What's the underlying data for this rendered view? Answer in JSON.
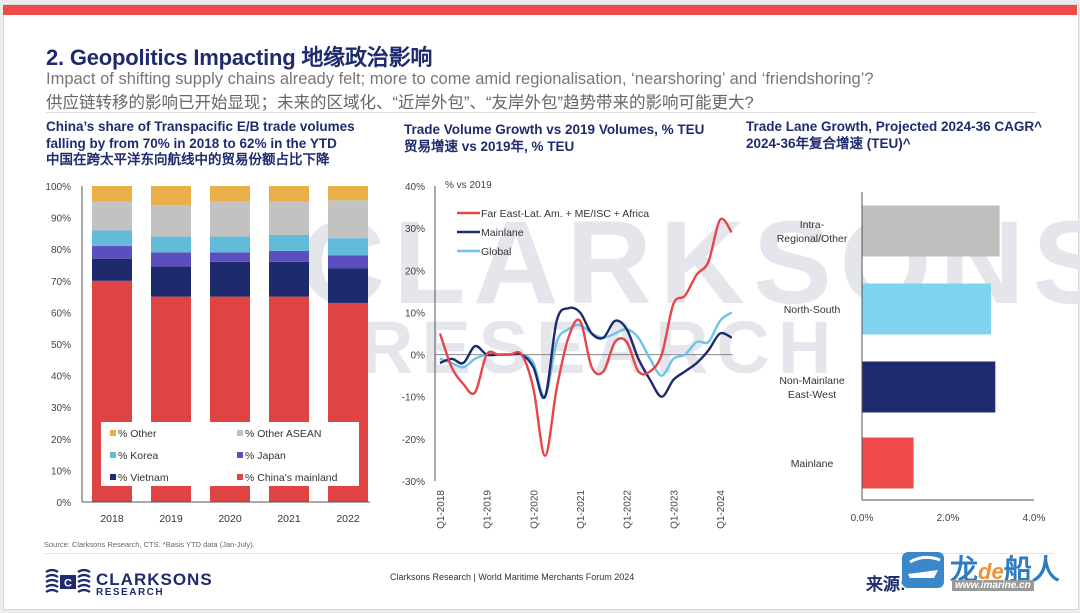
{
  "slide": {
    "title": "2. Geopolitics Impacting 地缘政治影响",
    "subtitle_en": "Impact of shifting supply chains already felt; more to come amid regionalisation, ‘nearshoring’ and ‘friendshoring’?",
    "subtitle_zh": "供应链转移的影响已开始显现；未来的区域化、“近岸外包”、“友岸外包”趋势带来的影响可能更大?",
    "accent_color": "#ef4b4b",
    "watermark_line1": "CLARKSONS",
    "watermark_line2": "RESEARCH"
  },
  "footer": {
    "source": "Source: Clarksons Research, CTS. *Basis YTD data (Jan-July).",
    "center": "Clarksons Research | World Maritime Merchants Forum 2024",
    "logo_name": "CLARKSONS",
    "logo_sub": "RESEARCH",
    "logo_icon_letter": "C",
    "watermark_prefix": "来源:",
    "watermark_brand_a": "龙",
    "watermark_brand_b": "de",
    "watermark_brand_c": "船人",
    "watermark_url": "www.imarine.cn"
  },
  "chart_data": [
    {
      "type": "bar",
      "stacked": true,
      "title_lines": [
        "China’s share of Transpacific E/B trade volumes",
        "falling by from 70% in 2018 to 62% in the YTD",
        "中国在跨太平洋东向航线中的贸易份额占比下降"
      ],
      "categories": [
        "2018",
        "2019",
        "2020",
        "2021",
        "2022"
      ],
      "ylim": [
        0,
        100
      ],
      "yticks": [
        "0%",
        "10%",
        "20%",
        "30%",
        "40%",
        "50%",
        "60%",
        "70%",
        "80%",
        "90%",
        "100%"
      ],
      "series": [
        {
          "name": "% China's mainland",
          "color": "#e04343",
          "values": [
            70,
            65,
            65,
            65,
            63
          ]
        },
        {
          "name": "% Vietnam",
          "color": "#1d2a6b",
          "values": [
            7,
            9.5,
            11,
            11,
            11
          ]
        },
        {
          "name": "% Japan",
          "color": "#5b4fc0",
          "values": [
            4,
            4.5,
            3,
            3.5,
            4
          ]
        },
        {
          "name": "% Korea",
          "color": "#62bcd9",
          "values": [
            5,
            5,
            5,
            5,
            5.5
          ]
        },
        {
          "name": "% Other ASEAN",
          "color": "#c2c2c2",
          "values": [
            9,
            10,
            11,
            10.5,
            12
          ]
        },
        {
          "name": "% Other",
          "color": "#e9b04a",
          "values": [
            5,
            6,
            5,
            5,
            4.5
          ]
        }
      ],
      "legend_order": [
        "% Other",
        "% Other ASEAN",
        "% Korea",
        "% Japan",
        "% Vietnam",
        "% China's mainland"
      ],
      "legend": "bottom-center"
    },
    {
      "type": "line",
      "title_lines": [
        "Trade Volume Growth vs 2019 Volumes, % TEU",
        "贸易增速 vs 2019年, % TEU"
      ],
      "ylabel": "% vs 2019",
      "ylim": [
        -30,
        40
      ],
      "yticks": [
        "-30%",
        "-20%",
        "-10%",
        "0%",
        "10%",
        "20%",
        "30%",
        "40%"
      ],
      "xticks": [
        "Q1-2018",
        "Q1-2019",
        "Q1-2020",
        "Q1-2021",
        "Q1-2022",
        "Q1-2023",
        "Q1-2024"
      ],
      "x": [
        "Q1-18",
        "Q2-18",
        "Q3-18",
        "Q4-18",
        "Q1-19",
        "Q2-19",
        "Q3-19",
        "Q4-19",
        "Q1-20",
        "Q2-20",
        "Q3-20",
        "Q4-20",
        "Q1-21",
        "Q2-21",
        "Q3-21",
        "Q4-21",
        "Q1-22",
        "Q2-22",
        "Q3-22",
        "Q4-22",
        "Q1-23",
        "Q2-23",
        "Q3-23",
        "Q4-23",
        "Q1-24",
        "Q2-24"
      ],
      "series": [
        {
          "name": "Far East-Lat. Am. + ME/ISC + Africa",
          "color": "#e8454a",
          "values": [
            5,
            -3,
            -7,
            -9,
            0,
            0,
            0,
            0,
            -8,
            -24,
            -8,
            4,
            8,
            -3,
            -4,
            3,
            3,
            -4,
            -4,
            0,
            12,
            14,
            19,
            22,
            32,
            29
          ]
        },
        {
          "name": "Mainlane",
          "color": "#1d2a6b",
          "values": [
            -2,
            -1,
            -2,
            2,
            0,
            0,
            0,
            0,
            -3,
            -10,
            8,
            11,
            10,
            5,
            4,
            8,
            6,
            -1,
            -6,
            -10,
            -6,
            -4,
            -2,
            1,
            5,
            4
          ]
        },
        {
          "name": "Global",
          "color": "#6fc3e6",
          "values": [
            -1,
            -2,
            -3,
            -1,
            0,
            0,
            0,
            0,
            -2,
            -10,
            3,
            6,
            7,
            5,
            4,
            5,
            6,
            4,
            -1,
            -5,
            -1,
            0,
            3,
            3,
            8,
            10
          ]
        }
      ],
      "legend": "top-left"
    },
    {
      "type": "bar",
      "orientation": "horizontal",
      "title_lines": [
        "Trade Lane Growth, Projected 2024-36 CAGR^",
        "2024-36年复合增速 (TEU)^"
      ],
      "categories": [
        "Intra-Regional/Other",
        "North-South",
        "Non-Mainlane East-West",
        "Mainlane"
      ],
      "category_lines": [
        [
          "Intra-",
          "Regional/Other"
        ],
        [
          "North-South"
        ],
        [
          "Non-Mainlane",
          "East-West"
        ],
        [
          "Mainlane"
        ]
      ],
      "values": [
        3.2,
        3.0,
        3.1,
        1.2
      ],
      "colors": [
        "#bfbfbf",
        "#7fd3ef",
        "#1f2b6e",
        "#ef4b4b"
      ],
      "xlim": [
        0,
        4
      ],
      "xticks": [
        "0.0%",
        "2.0%",
        "4.0%"
      ]
    }
  ]
}
